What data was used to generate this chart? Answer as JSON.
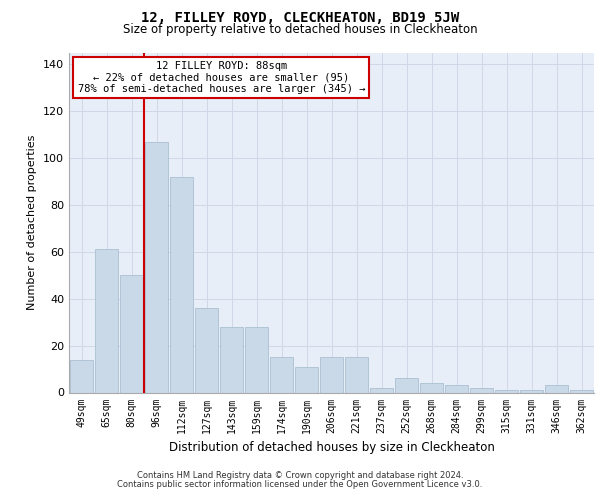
{
  "title": "12, FILLEY ROYD, CLECKHEATON, BD19 5JW",
  "subtitle": "Size of property relative to detached houses in Cleckheaton",
  "xlabel": "Distribution of detached houses by size in Cleckheaton",
  "ylabel": "Number of detached properties",
  "categories": [
    "49sqm",
    "65sqm",
    "80sqm",
    "96sqm",
    "112sqm",
    "127sqm",
    "143sqm",
    "159sqm",
    "174sqm",
    "190sqm",
    "206sqm",
    "221sqm",
    "237sqm",
    "252sqm",
    "268sqm",
    "284sqm",
    "299sqm",
    "315sqm",
    "331sqm",
    "346sqm",
    "362sqm"
  ],
  "values": [
    14,
    61,
    50,
    107,
    92,
    36,
    28,
    28,
    15,
    11,
    15,
    15,
    2,
    6,
    4,
    3,
    2,
    1,
    1,
    3,
    1
  ],
  "bar_color": "#c9d9e8",
  "bar_edge_color": "#a0b8cc",
  "vline_color": "#cc0000",
  "annotation_text": "12 FILLEY ROYD: 88sqm\n← 22% of detached houses are smaller (95)\n78% of semi-detached houses are larger (345) →",
  "annotation_box_color": "#ffffff",
  "annotation_box_edge": "#cc0000",
  "ylim": [
    0,
    145
  ],
  "yticks": [
    0,
    20,
    40,
    60,
    80,
    100,
    120,
    140
  ],
  "grid_color": "#d0d8e8",
  "background_color": "#e8eef8",
  "footer_line1": "Contains HM Land Registry data © Crown copyright and database right 2024.",
  "footer_line2": "Contains public sector information licensed under the Open Government Licence v3.0."
}
